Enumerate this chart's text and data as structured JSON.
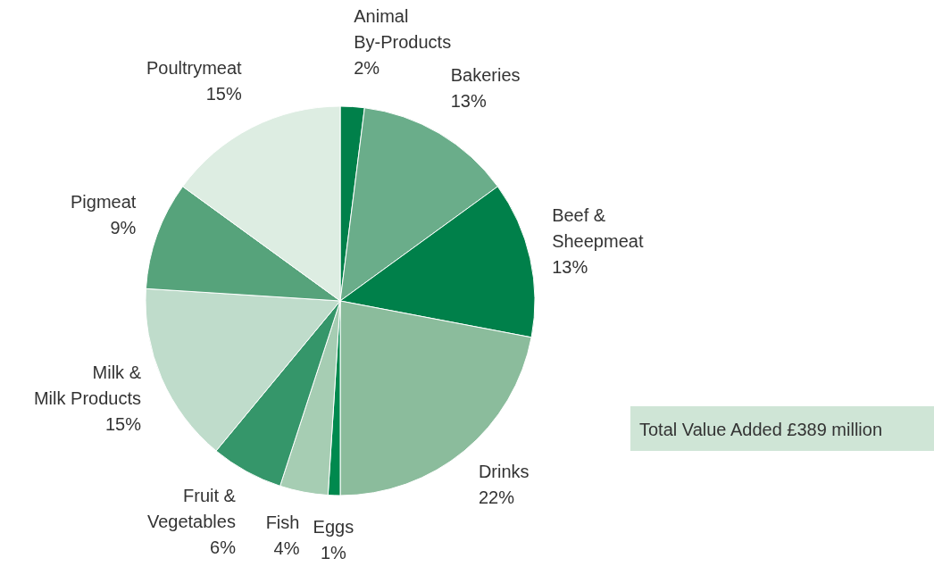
{
  "chart_data": {
    "type": "pie",
    "categories": [
      "Animal By-Products",
      "Bakeries",
      "Beef & Sheepmeat",
      "Drinks",
      "Eggs",
      "Fish",
      "Fruit & Vegetables",
      "Milk & Milk Products",
      "Pigmeat",
      "Poultrymeat"
    ],
    "values": [
      2,
      13,
      13,
      22,
      1,
      4,
      6,
      15,
      9,
      15
    ],
    "value_labels": [
      "2%",
      "13%",
      "13%",
      "22%",
      "1%",
      "4%",
      "6%",
      "15%",
      "9%",
      "15%"
    ],
    "colors": [
      "#00804a",
      "#6aad8a",
      "#00804a",
      "#8bbc9c",
      "#00894e",
      "#a6cdb3",
      "#35966a",
      "#bfdccb",
      "#56a37b",
      "#ddede2"
    ],
    "annotations": [
      "Total Value Added £389 million"
    ]
  }
}
